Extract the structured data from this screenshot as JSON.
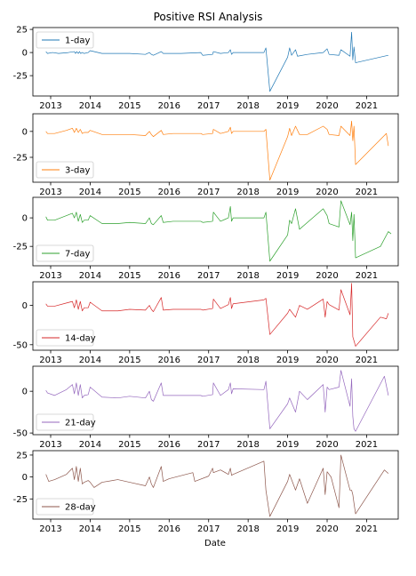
{
  "chart_data": {
    "type": "line",
    "title": "Positive RSI Analysis",
    "xlabel": "Date",
    "x_ticks": [
      "2013",
      "2014",
      "2015",
      "2016",
      "2017",
      "2018",
      "2019",
      "2020",
      "2021"
    ],
    "xlim": [
      2012.55,
      2021.8
    ],
    "legend_position": "upper-left / lower-left",
    "panels": [
      {
        "name": "1-day",
        "color": "#1f77b4",
        "ylim": [
          -47,
          27
        ],
        "yticks": [
          25,
          0,
          -25
        ],
        "legend_position": "upper-left",
        "x": [
          2012.88,
          2012.92,
          2013.05,
          2013.2,
          2013.45,
          2013.6,
          2013.63,
          2013.66,
          2013.7,
          2013.73,
          2013.76,
          2013.8,
          2013.85,
          2013.95,
          2014.0,
          2014.3,
          2014.7,
          2015.0,
          2015.4,
          2015.5,
          2015.55,
          2015.6,
          2015.8,
          2015.85,
          2016.1,
          2016.3,
          2016.8,
          2016.85,
          2017.1,
          2017.12,
          2017.3,
          2017.5,
          2017.55,
          2017.58,
          2017.62,
          2018.4,
          2018.45,
          2018.55,
          2019.0,
          2019.05,
          2019.1,
          2019.2,
          2019.25,
          2019.5,
          2019.9,
          2020.0,
          2020.05,
          2020.3,
          2020.35,
          2020.58,
          2020.62,
          2020.65,
          2020.68,
          2020.72,
          2021.55
        ],
        "values": [
          1,
          -1,
          0,
          -1,
          0,
          1,
          -1,
          1,
          -1,
          1,
          -1,
          0,
          -1,
          0,
          2,
          -1,
          -1,
          -1,
          -2,
          0,
          -2,
          -3,
          1,
          -1,
          -1,
          -1,
          0,
          -3,
          -2,
          1,
          -1,
          0,
          3,
          -2,
          0,
          0,
          5,
          -42,
          -5,
          5,
          -3,
          3,
          -4,
          -2,
          0,
          4,
          -2,
          -3,
          3,
          -4,
          22,
          -8,
          6,
          -11,
          -3
        ]
      },
      {
        "name": "3-day",
        "color": "#ff7f0e",
        "ylim": [
          -49,
          17
        ],
        "yticks": [
          0,
          -25
        ],
        "legend_position": "lower-left",
        "x": [
          2012.88,
          2012.92,
          2013.1,
          2013.4,
          2013.55,
          2013.6,
          2013.65,
          2013.7,
          2013.75,
          2013.8,
          2013.85,
          2013.95,
          2014.0,
          2014.3,
          2014.7,
          2015.0,
          2015.4,
          2015.5,
          2015.55,
          2015.6,
          2015.8,
          2015.85,
          2016.1,
          2016.8,
          2016.85,
          2017.1,
          2017.12,
          2017.3,
          2017.5,
          2017.55,
          2017.58,
          2017.62,
          2018.4,
          2018.45,
          2018.55,
          2019.0,
          2019.05,
          2019.1,
          2019.2,
          2019.3,
          2019.5,
          2019.9,
          2020.0,
          2020.05,
          2020.3,
          2020.35,
          2020.58,
          2020.62,
          2020.65,
          2020.68,
          2020.72,
          2021.5,
          2021.55
        ],
        "values": [
          0,
          -2,
          -2,
          1,
          3,
          -1,
          3,
          -1,
          2,
          -2,
          -1,
          -1,
          1,
          -3,
          -3,
          -3,
          -4,
          0,
          -3,
          -5,
          1,
          -3,
          -2,
          -2,
          -3,
          -2,
          2,
          -2,
          0,
          4,
          -2,
          0,
          0,
          2,
          -47,
          -5,
          3,
          -4,
          5,
          -3,
          -3,
          5,
          2,
          -3,
          -4,
          5,
          -4,
          10,
          -9,
          5,
          -32,
          -2,
          -14
        ]
      },
      {
        "name": "7-day",
        "color": "#2ca02c",
        "ylim": [
          -42,
          18
        ],
        "yticks": [
          0,
          -25
        ],
        "legend_position": "lower-left",
        "x": [
          2012.88,
          2012.92,
          2013.1,
          2013.4,
          2013.55,
          2013.6,
          2013.65,
          2013.7,
          2013.75,
          2013.8,
          2013.85,
          2013.95,
          2014.0,
          2014.3,
          2014.7,
          2015.0,
          2015.4,
          2015.5,
          2015.55,
          2015.6,
          2015.8,
          2015.85,
          2016.1,
          2016.8,
          2016.85,
          2017.1,
          2017.12,
          2017.3,
          2017.5,
          2017.55,
          2017.58,
          2017.62,
          2018.4,
          2018.45,
          2018.55,
          2019.0,
          2019.05,
          2019.1,
          2019.2,
          2019.3,
          2019.5,
          2019.9,
          2020.0,
          2020.05,
          2020.3,
          2020.35,
          2020.58,
          2020.62,
          2020.65,
          2020.68,
          2020.72,
          2021.35,
          2021.55,
          2021.62
        ],
        "values": [
          1,
          -2,
          -2,
          2,
          4,
          0,
          5,
          -3,
          3,
          -4,
          -2,
          -2,
          2,
          -5,
          -5,
          -4,
          -5,
          0,
          -5,
          -6,
          2,
          -4,
          -3,
          -3,
          -4,
          -3,
          5,
          -3,
          0,
          10,
          -3,
          0,
          0,
          5,
          -38,
          -15,
          -2,
          -5,
          8,
          -10,
          -4,
          8,
          2,
          -5,
          -8,
          15,
          -6,
          5,
          -20,
          3,
          -35,
          -25,
          -12,
          -14
        ]
      },
      {
        "name": "14-day",
        "color": "#d62728",
        "ylim": [
          -57,
          30
        ],
        "yticks": [
          0,
          -50
        ],
        "legend_position": "lower-left",
        "x": [
          2012.88,
          2012.92,
          2013.1,
          2013.4,
          2013.55,
          2013.6,
          2013.65,
          2013.7,
          2013.75,
          2013.8,
          2013.85,
          2013.95,
          2014.0,
          2014.3,
          2014.7,
          2015.0,
          2015.4,
          2015.5,
          2015.55,
          2015.6,
          2015.8,
          2015.85,
          2016.1,
          2016.8,
          2016.85,
          2017.1,
          2017.12,
          2017.3,
          2017.5,
          2017.55,
          2017.58,
          2017.62,
          2018.4,
          2018.45,
          2018.55,
          2019.0,
          2019.05,
          2019.2,
          2019.3,
          2019.5,
          2019.9,
          2019.95,
          2020.0,
          2020.05,
          2020.3,
          2020.35,
          2020.58,
          2020.62,
          2020.65,
          2020.68,
          2020.72,
          2021.35,
          2021.5,
          2021.55
        ],
        "values": [
          2,
          -1,
          -1,
          3,
          5,
          -3,
          7,
          -5,
          5,
          -7,
          -3,
          -3,
          4,
          -7,
          -7,
          -5,
          -6,
          0,
          -5,
          -8,
          10,
          -6,
          -5,
          -5,
          -6,
          -4,
          8,
          -4,
          1,
          10,
          -4,
          2,
          7,
          9,
          -37,
          -10,
          -5,
          -15,
          0,
          -5,
          8,
          -15,
          5,
          1,
          -6,
          20,
          -12,
          28,
          -40,
          -45,
          -52,
          -15,
          -17,
          -10
        ]
      },
      {
        "name": "21-day",
        "color": "#9467bd",
        "ylim": [
          -52,
          30
        ],
        "yticks": [
          0,
          -50
        ],
        "legend_position": "lower-left",
        "x": [
          2012.88,
          2012.92,
          2013.1,
          2013.4,
          2013.55,
          2013.6,
          2013.65,
          2013.7,
          2013.75,
          2013.8,
          2013.85,
          2013.95,
          2014.0,
          2014.3,
          2014.7,
          2015.0,
          2015.4,
          2015.5,
          2015.55,
          2015.6,
          2015.8,
          2015.85,
          2016.1,
          2016.8,
          2016.85,
          2017.1,
          2017.12,
          2017.3,
          2017.5,
          2017.55,
          2017.58,
          2017.62,
          2018.4,
          2018.45,
          2018.55,
          2019.0,
          2019.05,
          2019.2,
          2019.3,
          2019.5,
          2019.9,
          2019.95,
          2020.0,
          2020.05,
          2020.3,
          2020.35,
          2020.58,
          2020.62,
          2020.65,
          2020.68,
          2020.72,
          2021.45,
          2021.55
        ],
        "values": [
          1,
          -2,
          -5,
          2,
          8,
          -3,
          10,
          -5,
          8,
          -8,
          -5,
          -4,
          5,
          -7,
          -8,
          -6,
          -8,
          0,
          -10,
          -12,
          10,
          -5,
          -5,
          -5,
          -6,
          -4,
          10,
          -5,
          2,
          10,
          -3,
          3,
          2,
          12,
          -45,
          -15,
          -8,
          -25,
          0,
          -10,
          8,
          -25,
          5,
          2,
          5,
          25,
          -18,
          15,
          -30,
          -45,
          -48,
          18,
          -5
        ]
      },
      {
        "name": "28-day",
        "color": "#8c564b",
        "ylim": [
          -48,
          30
        ],
        "yticks": [
          25,
          0,
          -25
        ],
        "legend_position": "lower-left",
        "x": [
          2012.88,
          2012.95,
          2013.1,
          2013.4,
          2013.55,
          2013.6,
          2013.65,
          2013.7,
          2013.75,
          2013.8,
          2013.85,
          2013.95,
          2014.0,
          2014.1,
          2014.3,
          2014.7,
          2015.0,
          2015.4,
          2015.5,
          2015.55,
          2015.6,
          2015.8,
          2015.85,
          2016.0,
          2016.6,
          2016.65,
          2017.0,
          2017.1,
          2017.12,
          2017.3,
          2017.5,
          2017.55,
          2017.58,
          2017.62,
          2018.4,
          2018.45,
          2018.55,
          2019.0,
          2019.05,
          2019.2,
          2019.3,
          2019.5,
          2019.9,
          2019.95,
          2020.0,
          2020.1,
          2020.3,
          2020.35,
          2020.58,
          2020.62,
          2020.65,
          2020.68,
          2020.72,
          2021.45,
          2021.55
        ],
        "values": [
          3,
          -5,
          -3,
          3,
          10,
          -3,
          12,
          -5,
          10,
          -8,
          -6,
          -4,
          -6,
          -12,
          -6,
          -3,
          -6,
          -10,
          0,
          -8,
          -12,
          12,
          -5,
          -2,
          5,
          -5,
          1,
          10,
          5,
          8,
          3,
          10,
          2,
          3,
          18,
          -15,
          -45,
          -5,
          3,
          -15,
          -2,
          -30,
          10,
          -20,
          6,
          0,
          -35,
          25,
          -15,
          -15,
          -20,
          -30,
          -42,
          8,
          4
        ]
      }
    ]
  }
}
